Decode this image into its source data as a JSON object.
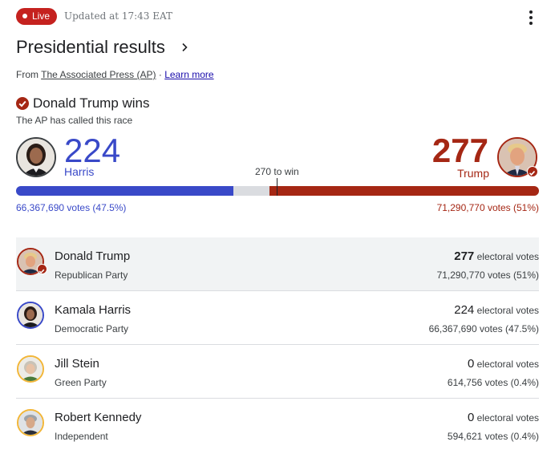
{
  "header": {
    "live_label": "Live",
    "updated": "Updated at 17:43 EAT",
    "title": "Presidential results",
    "source_prefix": "From",
    "source_name": "The Associated Press (AP)",
    "source_sep": "·",
    "learn_more": "Learn more"
  },
  "summary": {
    "winner_title": "Donald Trump wins",
    "called_text": "The AP has called this race",
    "threshold": "270 to win",
    "harris": {
      "ev": "224",
      "name": "Harris",
      "votes": "66,367,690 votes (47.5%)",
      "color": "#3949c8"
    },
    "trump": {
      "ev": "277",
      "name": "Trump",
      "votes": "71,290,770 votes (51%)",
      "color": "#a52714"
    },
    "bar": {
      "total": 538,
      "harris": 224,
      "trump": 277,
      "neutral": 37
    }
  },
  "candidates": [
    {
      "name": "Donald Trump",
      "party": "Republican Party",
      "ev": "277",
      "ev_label": "electoral votes",
      "votes": "71,290,770 votes (51%)",
      "winner": true,
      "avatar_icon": "trump-avatar"
    },
    {
      "name": "Kamala Harris",
      "party": "Democratic Party",
      "ev": "224",
      "ev_label": "electoral votes",
      "votes": "66,367,690 votes (47.5%)",
      "winner": false,
      "avatar_icon": "harris-avatar"
    },
    {
      "name": "Jill Stein",
      "party": "Green Party",
      "ev": "0",
      "ev_label": "electoral votes",
      "votes": "614,756 votes (0.4%)",
      "winner": false,
      "avatar_icon": "stein-avatar"
    },
    {
      "name": "Robert Kennedy",
      "party": "Independent",
      "ev": "0",
      "ev_label": "electoral votes",
      "votes": "594,621 votes (0.4%)",
      "winner": false,
      "avatar_icon": "kennedy-avatar"
    }
  ],
  "icons": {
    "more": "more-vert-icon",
    "chevron": "chevron-right-icon",
    "check": "check-circle-icon"
  }
}
